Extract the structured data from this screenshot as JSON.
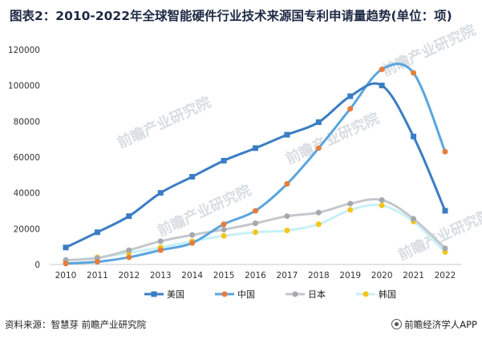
{
  "title": "图表2：2010-2022年全球智能硬件行业技术来源国专利申请量趋势(单位：项)",
  "source": "资料来源：智慧芽 前瞻产业研究院",
  "brand": "前瞻经济学人APP",
  "watermark": "前瞻产业研究院",
  "chart_data": {
    "type": "line",
    "title": "图表2：2010-2022年全球智能硬件行业技术来源国专利申请量趋势(单位：项)",
    "xlabel": "",
    "ylabel": "",
    "ylim": [
      0,
      120000
    ],
    "yticks": [
      0,
      20000,
      40000,
      60000,
      80000,
      100000,
      120000
    ],
    "grid": false,
    "legend_position": "bottom",
    "x": [
      "2010",
      "2011",
      "2012",
      "2013",
      "2014",
      "2015",
      "2016",
      "2017",
      "2018",
      "2019",
      "2020",
      "2021",
      "2022"
    ],
    "series": [
      {
        "name": "美国",
        "color": "#3b7dc4",
        "marker": "square",
        "values": [
          9500,
          18000,
          27000,
          40000,
          49000,
          58000,
          65000,
          72500,
          79500,
          94000,
          100000,
          71500,
          30000
        ]
      },
      {
        "name": "中国",
        "color": "#5aa5de",
        "marker": "circle",
        "marker_color": "#e87c3a",
        "values": [
          500,
          1500,
          4000,
          8000,
          12000,
          22500,
          30000,
          45000,
          65000,
          87000,
          109000,
          107000,
          63000
        ]
      },
      {
        "name": "日本",
        "color": "#c4c8cc",
        "marker": "circle",
        "marker_color": "#a5a9ad",
        "values": [
          2500,
          3500,
          8000,
          13000,
          16500,
          19500,
          23000,
          27000,
          29000,
          34000,
          36000,
          25500,
          9000
        ]
      },
      {
        "name": "韩国",
        "color": "#c8f0f8",
        "marker": "circle",
        "marker_color": "#f5c518",
        "values": [
          2000,
          4000,
          6500,
          9500,
          13000,
          16000,
          18000,
          19000,
          22500,
          30500,
          33000,
          24000,
          7000
        ]
      }
    ]
  }
}
